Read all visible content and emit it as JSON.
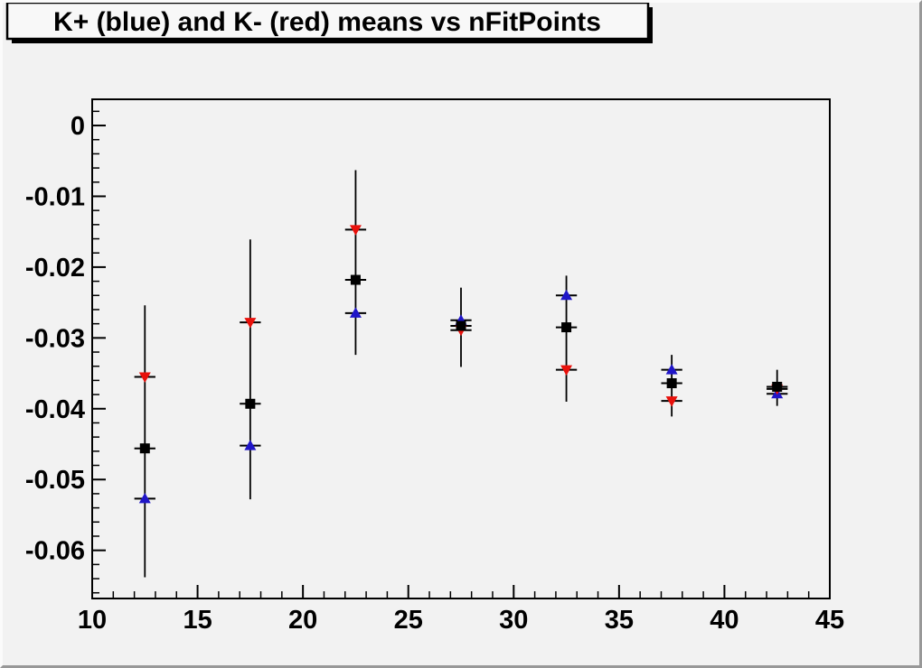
{
  "title": "K+ (blue) and K- (red) means vs nFitPoints",
  "colors": {
    "canvas_bg": "#f2f2f2",
    "frame_bg": "#f2f2f2",
    "frame_border": "#000000",
    "title_box_bg": "#f8f8f8",
    "title_box_border": "#000000",
    "title_box_shadow": "#000000",
    "kplus_blue": "#2016c8",
    "kminus_red": "#e8110b",
    "mean_black": "#000000",
    "bevel_light": "#fbfbfb",
    "bevel_dark": "#989898"
  },
  "chart_data": {
    "type": "scatter",
    "title": "K+ (blue) and K- (red) means vs nFitPoints",
    "xlabel": "",
    "ylabel": "",
    "xlim": [
      10,
      45
    ],
    "ylim": [
      -0.0668,
      0.0037
    ],
    "grid": false,
    "legend": "none",
    "x_major_ticks": [
      10,
      15,
      20,
      25,
      30,
      35,
      40,
      45
    ],
    "x_tick_labels": [
      "10",
      "15",
      "20",
      "25",
      "30",
      "35",
      "40",
      "45"
    ],
    "x_minor_step": 1,
    "y_major_ticks": [
      0,
      -0.01,
      -0.02,
      -0.03,
      -0.04,
      -0.05,
      -0.06
    ],
    "y_tick_labels": [
      "0",
      "-0.01",
      "-0.02",
      "-0.03",
      "-0.04",
      "-0.05",
      "-0.06"
    ],
    "y_minor_step": 0.002,
    "x": [
      12.5,
      17.5,
      22.5,
      27.5,
      32.5,
      37.5,
      42.5
    ],
    "series": [
      {
        "name": "K+ (blue up-triangles)",
        "marker": "triangle-up",
        "color_key": "kplus_blue",
        "values": [
          -0.0527,
          -0.0452,
          -0.0265,
          -0.0275,
          -0.024,
          -0.0345,
          -0.0379
        ]
      },
      {
        "name": "K- (red down-triangles)",
        "marker": "triangle-down",
        "color_key": "kminus_red",
        "values": [
          -0.0355,
          -0.0278,
          -0.0147,
          -0.0289,
          -0.0345,
          -0.0389,
          -0.0372
        ]
      },
      {
        "name": "combined mean (black squares)",
        "marker": "square",
        "color_key": "mean_black",
        "values": [
          -0.0456,
          -0.0393,
          -0.0218,
          -0.0283,
          -0.0285,
          -0.0364,
          -0.0369
        ]
      }
    ],
    "error_bars": {
      "x": [
        12.5,
        17.5,
        22.5,
        27.5,
        32.5,
        37.5,
        42.5
      ],
      "top": [
        -0.0254,
        -0.0161,
        -0.0063,
        -0.0229,
        -0.0212,
        -0.0324,
        -0.0345
      ],
      "bottom": [
        -0.0638,
        -0.0528,
        -0.0324,
        -0.0341,
        -0.039,
        -0.0411,
        -0.0396
      ]
    },
    "x_error_halfwidth": 0.5
  }
}
